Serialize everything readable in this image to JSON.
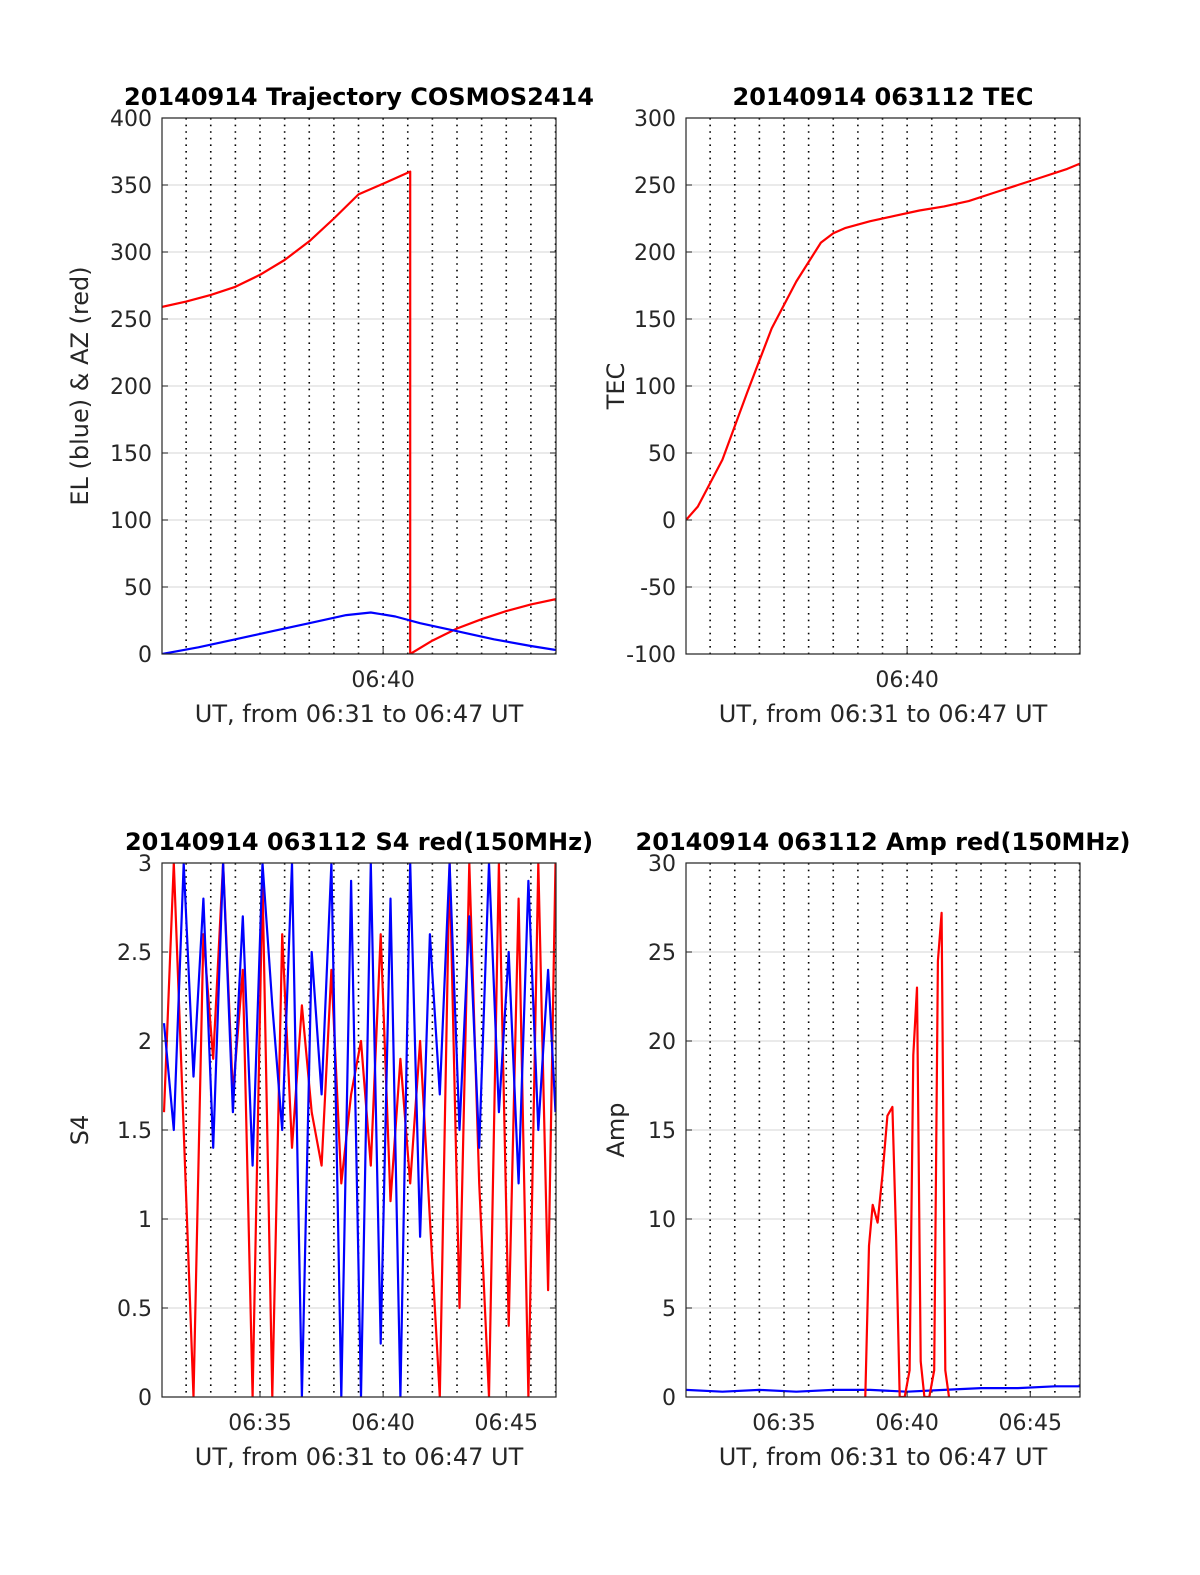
{
  "colors": {
    "red": "#ff0000",
    "blue": "#0000ff",
    "grid": "#dedede",
    "vgrid": "#000000",
    "axis": "#262626"
  },
  "chart_data": [
    {
      "id": "trajectory",
      "type": "line",
      "title": "20140914 Trajectory COSMOS2414",
      "xlabel": "UT, from 06:31 to 06:47 UT",
      "ylabel": "EL (blue) & AZ (red)",
      "xlim": [
        6.52,
        22.52
      ],
      "ylim": [
        0,
        400
      ],
      "yticks": [
        0,
        50,
        100,
        150,
        200,
        250,
        300,
        350,
        400
      ],
      "yticklabels": [
        "0",
        "50",
        "100",
        "150",
        "200",
        "250",
        "300",
        "350",
        "400"
      ],
      "xticks": [
        15.5
      ],
      "xticklabels": [
        "06:40"
      ],
      "grid": "horizontal solid, vertical dotted",
      "series": [
        {
          "color": "red",
          "x": [
            6.52,
            7.5,
            8.5,
            9.5,
            10.5,
            11.5,
            12.5,
            13.5,
            14.5,
            15.5,
            16.6,
            16.6,
            17.5,
            18.5,
            19.5,
            20.5,
            21.5,
            22.52
          ],
          "values": [
            259,
            263,
            268,
            274,
            283,
            294,
            308,
            325,
            343,
            351,
            360,
            0,
            10,
            19,
            26,
            32,
            37,
            41
          ]
        },
        {
          "color": "blue",
          "x": [
            6.52,
            8.0,
            9.5,
            11.0,
            12.5,
            14.0,
            15.0,
            16.0,
            17.0,
            18.5,
            20.0,
            21.5,
            22.52
          ],
          "values": [
            0,
            5,
            11,
            17,
            23,
            29,
            31,
            28,
            23,
            17,
            11,
            6,
            3
          ]
        }
      ]
    },
    {
      "id": "tec",
      "type": "line",
      "title": "20140914 063112 TEC",
      "xlabel": "UT, from 06:31 to 06:47 UT",
      "ylabel": "TEC",
      "xlim": [
        6.52,
        22.52
      ],
      "ylim": [
        -100,
        300
      ],
      "yticks": [
        -100,
        -50,
        0,
        50,
        100,
        150,
        200,
        250,
        300
      ],
      "yticklabels": [
        "-100",
        "-50",
        "0",
        "50",
        "100",
        "150",
        "200",
        "250",
        "300"
      ],
      "xticks": [
        15.5
      ],
      "xticklabels": [
        "06:40"
      ],
      "grid": "horizontal solid, vertical dotted",
      "series": [
        {
          "color": "red",
          "x": [
            6.52,
            7.0,
            8.0,
            9.0,
            10.0,
            11.0,
            12.0,
            12.5,
            13.0,
            14.0,
            15.0,
            16.0,
            17.0,
            18.0,
            19.0,
            20.0,
            21.0,
            22.0,
            22.52
          ],
          "values": [
            0,
            10,
            45,
            95,
            143,
            178,
            207,
            214,
            218,
            223,
            227,
            231,
            234,
            238,
            244,
            250,
            256,
            262,
            266
          ]
        }
      ]
    },
    {
      "id": "s4",
      "type": "line",
      "title": "20140914 063112 S4 red(150MHz)",
      "xlabel": "UT, from 06:31 to 06:47 UT",
      "ylabel": "S4",
      "xlim": [
        6.52,
        22.52
      ],
      "ylim": [
        0,
        3
      ],
      "yticks": [
        0,
        0.5,
        1,
        1.5,
        2,
        2.5,
        3
      ],
      "yticklabels": [
        "0",
        "0.5",
        "1",
        "1.5",
        "2",
        "2.5",
        "3"
      ],
      "xticks": [
        10.5,
        15.5,
        20.5
      ],
      "xticklabels": [
        "06:35",
        "06:40",
        "06:45"
      ],
      "grid": "horizontal solid, vertical dotted",
      "series": [
        {
          "color": "red",
          "x": [
            6.6,
            7.0,
            7.4,
            7.8,
            8.2,
            8.6,
            9.0,
            9.4,
            9.8,
            10.2,
            10.6,
            11.0,
            11.4,
            11.8,
            12.2,
            12.6,
            13.0,
            13.4,
            13.8,
            14.2,
            14.6,
            15.0,
            15.4,
            15.8,
            16.2,
            16.6,
            17.0,
            17.4,
            17.8,
            18.2,
            18.6,
            19.0,
            19.4,
            19.8,
            20.2,
            20.6,
            21.0,
            21.4,
            21.8,
            22.2,
            22.5
          ],
          "values": [
            1.6,
            3.0,
            1.5,
            0,
            2.6,
            1.9,
            3.0,
            1.7,
            2.4,
            0,
            2.9,
            0,
            2.6,
            1.4,
            2.2,
            1.6,
            1.3,
            2.4,
            1.2,
            1.7,
            2.0,
            1.3,
            2.6,
            1.1,
            1.9,
            1.2,
            2.0,
            1.0,
            0,
            3.0,
            0.5,
            3.0,
            1.2,
            0,
            3.0,
            0.4,
            2.8,
            0,
            3.0,
            0.6,
            3.0
          ]
        },
        {
          "color": "blue",
          "x": [
            6.6,
            7.0,
            7.4,
            7.8,
            8.2,
            8.6,
            9.0,
            9.4,
            9.8,
            10.2,
            10.6,
            11.0,
            11.4,
            11.8,
            12.2,
            12.6,
            13.0,
            13.4,
            13.8,
            14.2,
            14.6,
            15.0,
            15.4,
            15.8,
            16.2,
            16.6,
            17.0,
            17.4,
            17.8,
            18.2,
            18.6,
            19.0,
            19.4,
            19.8,
            20.2,
            20.6,
            21.0,
            21.4,
            21.8,
            22.2,
            22.5
          ],
          "values": [
            2.1,
            1.5,
            3.0,
            1.8,
            2.8,
            1.4,
            3.0,
            1.6,
            2.7,
            1.3,
            3.0,
            2.2,
            1.5,
            3.0,
            0,
            2.5,
            1.7,
            3.0,
            0,
            2.9,
            0,
            3.0,
            0.3,
            2.8,
            0,
            3.0,
            0.9,
            2.6,
            1.7,
            3.0,
            1.5,
            2.7,
            1.4,
            3.0,
            1.6,
            2.5,
            1.2,
            2.9,
            1.5,
            2.4,
            1.6
          ]
        }
      ]
    },
    {
      "id": "amp",
      "type": "line",
      "title": "20140914 063112 Amp red(150MHz)",
      "xlabel": "UT, from 06:31 to 06:47 UT",
      "ylabel": "Amp",
      "xlim": [
        6.52,
        22.52
      ],
      "ylim": [
        0,
        30
      ],
      "yticks": [
        0,
        5,
        10,
        15,
        20,
        25,
        30
      ],
      "yticklabels": [
        "0",
        "5",
        "10",
        "15",
        "20",
        "25",
        "30"
      ],
      "xticks": [
        10.5,
        15.5,
        20.5
      ],
      "xticklabels": [
        "06:35",
        "06:40",
        "06:45"
      ],
      "grid": "horizontal solid, vertical dotted",
      "series": [
        {
          "color": "blue",
          "x": [
            6.52,
            8.0,
            9.5,
            11.0,
            12.5,
            14.0,
            15.5,
            17.0,
            18.5,
            20.0,
            21.5,
            22.52
          ],
          "values": [
            0.4,
            0.3,
            0.4,
            0.3,
            0.4,
            0.4,
            0.3,
            0.4,
            0.5,
            0.5,
            0.6,
            0.6
          ]
        },
        {
          "color": "red",
          "x": [
            13.8,
            13.95,
            14.1,
            14.3,
            14.5,
            14.7,
            14.9,
            15.05,
            15.2,
            15.4,
            15.6,
            15.75,
            15.9,
            16.05,
            16.2,
            16.4,
            16.6,
            16.75,
            16.9,
            17.05,
            17.2
          ],
          "values": [
            0,
            8.5,
            10.8,
            9.8,
            12.5,
            15.8,
            16.3,
            9.0,
            0,
            0,
            1.5,
            19.2,
            23.0,
            2.0,
            0,
            0,
            1.5,
            24.5,
            27.2,
            1.5,
            0
          ]
        }
      ]
    }
  ]
}
